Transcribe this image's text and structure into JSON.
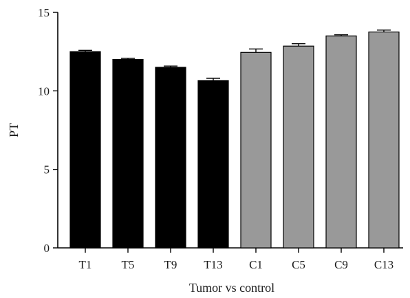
{
  "chart_data": {
    "type": "bar",
    "xlabel": "Tumor vs control",
    "ylabel": "PT",
    "ylim": [
      0,
      15
    ],
    "yticks": [
      0,
      5,
      10,
      15
    ],
    "grid": false,
    "categories": [
      "T1",
      "T5",
      "T9",
      "T13",
      "C1",
      "C5",
      "C9",
      "C13"
    ],
    "values": [
      12.5,
      12.0,
      11.5,
      10.65,
      12.45,
      12.85,
      13.5,
      13.75
    ],
    "errors": [
      0.08,
      0.07,
      0.08,
      0.15,
      0.22,
      0.15,
      0.07,
      0.12
    ],
    "colors": [
      "#000000",
      "#000000",
      "#000000",
      "#000000",
      "#999999",
      "#999999",
      "#999999",
      "#999999"
    ]
  }
}
